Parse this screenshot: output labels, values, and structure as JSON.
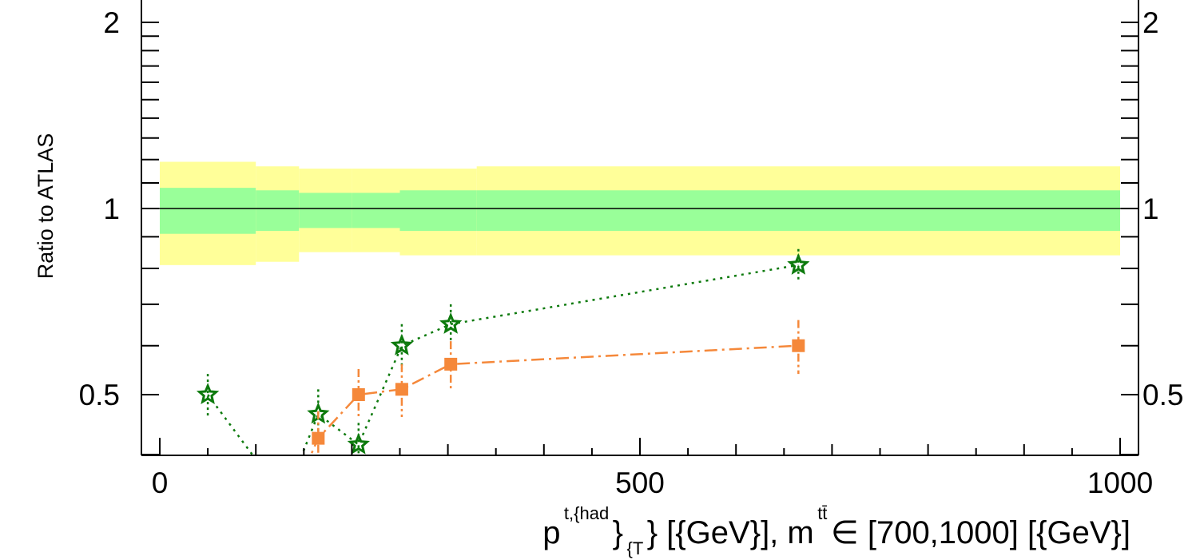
{
  "chart_data": {
    "type": "scatter",
    "title": "",
    "xlabel": {
      "p": "p",
      "p_sup": "t,{had",
      "p_sub": "}",
      "p_sub2": "{T",
      "rest": "} [{GeV}], m",
      "m_sup": "tt̄",
      "tail": " ∈ [700,1000] [{GeV}]"
    },
    "ylabel": "Ratio to ATLAS",
    "xlim": [
      -10,
      1010
    ],
    "ylim": [
      0.35,
      2.2
    ],
    "log_y": true,
    "x_tick_labels": [
      "0",
      "500",
      "1000"
    ],
    "x_tick_values": [
      0,
      500,
      1000
    ],
    "y_tick_labels": [
      "0.5",
      "1",
      "2"
    ],
    "y_tick_values": [
      0.5,
      1,
      2
    ],
    "reference_line": 1,
    "bands": {
      "bins": [
        {
          "x0": 0,
          "x1": 100,
          "inner": [
            0.91,
            1.08
          ],
          "outer": [
            0.81,
            1.19
          ]
        },
        {
          "x0": 100,
          "x1": 145,
          "inner": [
            0.92,
            1.07
          ],
          "outer": [
            0.82,
            1.17
          ]
        },
        {
          "x0": 145,
          "x1": 200,
          "inner": [
            0.93,
            1.06
          ],
          "outer": [
            0.85,
            1.16
          ]
        },
        {
          "x0": 200,
          "x1": 250,
          "inner": [
            0.93,
            1.06
          ],
          "outer": [
            0.85,
            1.16
          ]
        },
        {
          "x0": 250,
          "x1": 330,
          "inner": [
            0.92,
            1.07
          ],
          "outer": [
            0.84,
            1.16
          ]
        },
        {
          "x0": 330,
          "x1": 1000,
          "inner": [
            0.92,
            1.07
          ],
          "outer": [
            0.84,
            1.17
          ]
        }
      ],
      "inner_color": "#99ff99",
      "outer_color": "#ffff99"
    },
    "series": [
      {
        "color": "#0d7a0d",
        "marker": "star",
        "line": "dotted",
        "points": [
          {
            "x": 50,
            "y": 0.5,
            "lo": 0.46,
            "hi": 0.54
          },
          {
            "x": 130,
            "y": 0.34,
            "lo": 0.3,
            "hi": 0.38
          },
          {
            "x": 165,
            "y": 0.465,
            "lo": 0.42,
            "hi": 0.51
          },
          {
            "x": 207,
            "y": 0.415,
            "lo": 0.38,
            "hi": 0.45
          },
          {
            "x": 252,
            "y": 0.6,
            "lo": 0.55,
            "hi": 0.65
          },
          {
            "x": 303,
            "y": 0.65,
            "lo": 0.61,
            "hi": 0.7
          },
          {
            "x": 665,
            "y": 0.81,
            "lo": 0.76,
            "hi": 0.86
          }
        ]
      },
      {
        "color": "#f5883a",
        "marker": "square",
        "line": "dashdot",
        "points": [
          {
            "x": 130,
            "y": 0.32,
            "lo": 0.29,
            "hi": 0.35
          },
          {
            "x": 165,
            "y": 0.425,
            "lo": 0.38,
            "hi": 0.47
          },
          {
            "x": 207,
            "y": 0.5,
            "lo": 0.46,
            "hi": 0.55
          },
          {
            "x": 252,
            "y": 0.51,
            "lo": 0.46,
            "hi": 0.56
          },
          {
            "x": 303,
            "y": 0.56,
            "lo": 0.51,
            "hi": 0.61
          },
          {
            "x": 665,
            "y": 0.6,
            "lo": 0.54,
            "hi": 0.66
          }
        ]
      }
    ],
    "grid": false,
    "legend": "none"
  }
}
